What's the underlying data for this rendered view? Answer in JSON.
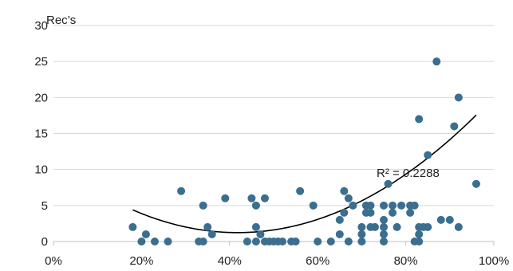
{
  "chart_data": {
    "type": "scatter",
    "title": "",
    "xlabel": "",
    "ylabel": "Rec’s",
    "xlim": [
      0,
      100
    ],
    "ylim": [
      0,
      30
    ],
    "x_ticks": [
      0,
      20,
      40,
      60,
      80,
      100
    ],
    "y_ticks": [
      0,
      5,
      10,
      15,
      20,
      25,
      30
    ],
    "x_tick_labels": [
      "0%",
      "20%",
      "40%",
      "60%",
      "80%",
      "100%"
    ],
    "y_tick_labels": [
      "0",
      "5",
      "10",
      "15",
      "20",
      "25",
      "30"
    ],
    "grid": "horizontal",
    "legend": "none",
    "marker_color": "#3B6E8F",
    "trendline": {
      "type": "polynomial-2",
      "coefficients": [
        10.96,
        -0.465,
        0.00556
      ],
      "x_range": [
        18,
        96
      ],
      "color": "#000000",
      "label": "R² = 0.2288"
    },
    "points": [
      {
        "x": 18,
        "y": 2
      },
      {
        "x": 20,
        "y": 0
      },
      {
        "x": 21,
        "y": 1
      },
      {
        "x": 23,
        "y": 0
      },
      {
        "x": 26,
        "y": 0
      },
      {
        "x": 29,
        "y": 7
      },
      {
        "x": 33,
        "y": 0
      },
      {
        "x": 34,
        "y": 0
      },
      {
        "x": 34,
        "y": 5
      },
      {
        "x": 35,
        "y": 2
      },
      {
        "x": 36,
        "y": 1
      },
      {
        "x": 39,
        "y": 6
      },
      {
        "x": 44,
        "y": 0
      },
      {
        "x": 45,
        "y": 6
      },
      {
        "x": 46,
        "y": 5
      },
      {
        "x": 46,
        "y": 2
      },
      {
        "x": 46,
        "y": 0
      },
      {
        "x": 47,
        "y": 1
      },
      {
        "x": 48,
        "y": 6
      },
      {
        "x": 48,
        "y": 0
      },
      {
        "x": 49,
        "y": 0
      },
      {
        "x": 50,
        "y": 0
      },
      {
        "x": 51,
        "y": 0
      },
      {
        "x": 52,
        "y": 0
      },
      {
        "x": 54,
        "y": 0
      },
      {
        "x": 55,
        "y": 0
      },
      {
        "x": 56,
        "y": 7
      },
      {
        "x": 59,
        "y": 5
      },
      {
        "x": 60,
        "y": 0
      },
      {
        "x": 63,
        "y": 0
      },
      {
        "x": 65,
        "y": 1
      },
      {
        "x": 65,
        "y": 3
      },
      {
        "x": 66,
        "y": 7
      },
      {
        "x": 66,
        "y": 4
      },
      {
        "x": 67,
        "y": 6
      },
      {
        "x": 67,
        "y": 0
      },
      {
        "x": 68,
        "y": 5
      },
      {
        "x": 70,
        "y": 2
      },
      {
        "x": 70,
        "y": 1
      },
      {
        "x": 70,
        "y": 0
      },
      {
        "x": 71,
        "y": 4
      },
      {
        "x": 71,
        "y": 5
      },
      {
        "x": 72,
        "y": 4
      },
      {
        "x": 72,
        "y": 5
      },
      {
        "x": 72,
        "y": 2
      },
      {
        "x": 73,
        "y": 2
      },
      {
        "x": 75,
        "y": 0
      },
      {
        "x": 75,
        "y": 2
      },
      {
        "x": 75,
        "y": 3
      },
      {
        "x": 75,
        "y": 5
      },
      {
        "x": 75,
        "y": 1
      },
      {
        "x": 76,
        "y": 8
      },
      {
        "x": 77,
        "y": 5
      },
      {
        "x": 77,
        "y": 4
      },
      {
        "x": 78,
        "y": 2
      },
      {
        "x": 79,
        "y": 5
      },
      {
        "x": 81,
        "y": 4
      },
      {
        "x": 81,
        "y": 5
      },
      {
        "x": 82,
        "y": 5
      },
      {
        "x": 82,
        "y": 0
      },
      {
        "x": 83,
        "y": 17
      },
      {
        "x": 83,
        "y": 2
      },
      {
        "x": 83,
        "y": 1
      },
      {
        "x": 83,
        "y": 0
      },
      {
        "x": 84,
        "y": 2
      },
      {
        "x": 85,
        "y": 12
      },
      {
        "x": 85,
        "y": 2
      },
      {
        "x": 87,
        "y": 25
      },
      {
        "x": 88,
        "y": 3
      },
      {
        "x": 90,
        "y": 3
      },
      {
        "x": 91,
        "y": 16
      },
      {
        "x": 92,
        "y": 20
      },
      {
        "x": 92,
        "y": 2
      },
      {
        "x": 96,
        "y": 8
      }
    ]
  }
}
